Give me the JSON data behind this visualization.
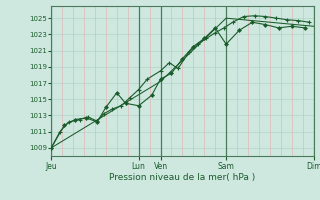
{
  "background_color": "#cee8e0",
  "grid_color_h": "#b8d8cc",
  "grid_color_v": "#e0b8b8",
  "line_color": "#1a5c2a",
  "marker_color": "#1a5c2a",
  "xlabel": "Pression niveau de la mer( hPa )",
  "yticks": [
    1009,
    1011,
    1013,
    1015,
    1017,
    1019,
    1021,
    1023,
    1025
  ],
  "ylim": [
    1008.0,
    1026.5
  ],
  "xlim": [
    0,
    6.0
  ],
  "xtick_positions": [
    0,
    2.0,
    2.5,
    4.0,
    6.0
  ],
  "xtick_labels": [
    "Jeu",
    "Lun",
    "Ven",
    "Sam",
    "Dim"
  ],
  "vline_positions": [
    0,
    2.0,
    2.5,
    4.0,
    6.0
  ],
  "series1_x": [
    0,
    0.2,
    0.4,
    0.65,
    0.85,
    1.05,
    1.2,
    1.4,
    1.6,
    1.8,
    2.0,
    2.2,
    2.5,
    2.7,
    2.9,
    3.15,
    3.35,
    3.55,
    3.75,
    3.95,
    4.15,
    4.4,
    4.65,
    4.9,
    5.15,
    5.4,
    5.65,
    5.9
  ],
  "series1_y": [
    1009,
    1011.0,
    1012.2,
    1012.5,
    1012.8,
    1012.3,
    1013.2,
    1013.8,
    1014.2,
    1015.2,
    1016.2,
    1017.5,
    1018.5,
    1019.5,
    1018.8,
    1020.8,
    1021.8,
    1022.5,
    1023.2,
    1023.8,
    1024.5,
    1025.2,
    1025.3,
    1025.2,
    1025.0,
    1024.8,
    1024.7,
    1024.5
  ],
  "series2_x": [
    0,
    0.3,
    0.55,
    0.8,
    1.05,
    1.25,
    1.5,
    1.7,
    2.0,
    2.3,
    2.5,
    2.75,
    3.0,
    3.25,
    3.5,
    3.75,
    4.0,
    4.3,
    4.6,
    4.9,
    5.2,
    5.5,
    5.8
  ],
  "series2_y": [
    1009,
    1011.8,
    1012.5,
    1012.7,
    1012.2,
    1014.0,
    1015.8,
    1014.5,
    1014.2,
    1015.5,
    1017.5,
    1018.2,
    1020.0,
    1021.5,
    1022.5,
    1023.8,
    1021.8,
    1023.5,
    1024.5,
    1024.2,
    1023.8,
    1024.0,
    1023.8
  ],
  "series3_x": [
    0,
    2.5,
    4.0,
    6.0
  ],
  "series3_y": [
    1009,
    1017.2,
    1025.0,
    1024.0
  ]
}
